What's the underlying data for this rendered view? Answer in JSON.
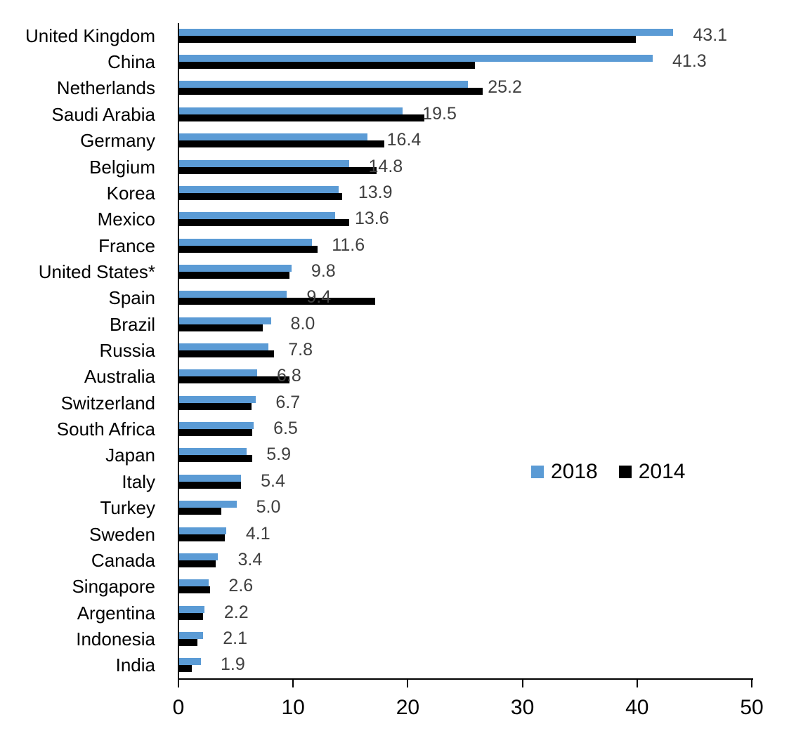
{
  "chart_data": {
    "type": "bar",
    "orientation": "horizontal",
    "title": "",
    "xlabel": "",
    "ylabel": "",
    "xlim": [
      0,
      50
    ],
    "x_ticks": [
      "0",
      "10",
      "20",
      "30",
      "40",
      "50"
    ],
    "grid": false,
    "legend_position": "middle-right",
    "categories": [
      "United Kingdom",
      "China",
      "Netherlands",
      "Saudi Arabia",
      "Germany",
      "Belgium",
      "Korea",
      "Mexico",
      "France",
      "United States*",
      "Spain",
      "Brazil",
      "Russia",
      "Australia",
      "Switzerland",
      "South Africa",
      "Japan",
      "Italy",
      "Turkey",
      "Sweden",
      "Canada",
      "Singapore",
      "Argentina",
      "Indonesia",
      "India"
    ],
    "series": [
      {
        "name": "2018",
        "color": "#5B9BD5",
        "values": [
          43.1,
          41.3,
          25.2,
          19.5,
          16.4,
          14.8,
          13.9,
          13.6,
          11.6,
          9.8,
          9.4,
          8.0,
          7.8,
          6.8,
          6.7,
          6.5,
          5.9,
          5.4,
          5.0,
          4.1,
          3.4,
          2.6,
          2.2,
          2.1,
          1.9
        ],
        "data_labels_shown": true
      },
      {
        "name": "2014",
        "color": "#000000",
        "values": [
          39.8,
          25.8,
          26.5,
          21.4,
          17.9,
          17.2,
          14.2,
          14.8,
          12.1,
          9.6,
          17.1,
          7.3,
          8.3,
          9.6,
          6.3,
          6.4,
          6.4,
          5.4,
          3.7,
          4.0,
          3.2,
          2.7,
          2.1,
          1.6,
          1.1
        ],
        "data_labels_shown": false
      }
    ],
    "data_labels": [
      "43.1",
      "41.3",
      "25.2",
      "19.5",
      "16.4",
      "14.8",
      "13.9",
      "13.6",
      "11.6",
      "9.8",
      "9.4",
      "8.0",
      "7.8",
      "6.8",
      "6.7",
      "6.5",
      "5.9",
      "5.4",
      "5.0",
      "4.1",
      "3.4",
      "2.6",
      "2.2",
      "2.1",
      "1.9"
    ]
  },
  "colors": {
    "bar_2018": "#5B9BD5",
    "bar_2014": "#000000",
    "axis": "#000000",
    "value_label": "#404040",
    "category_label": "#000000"
  }
}
